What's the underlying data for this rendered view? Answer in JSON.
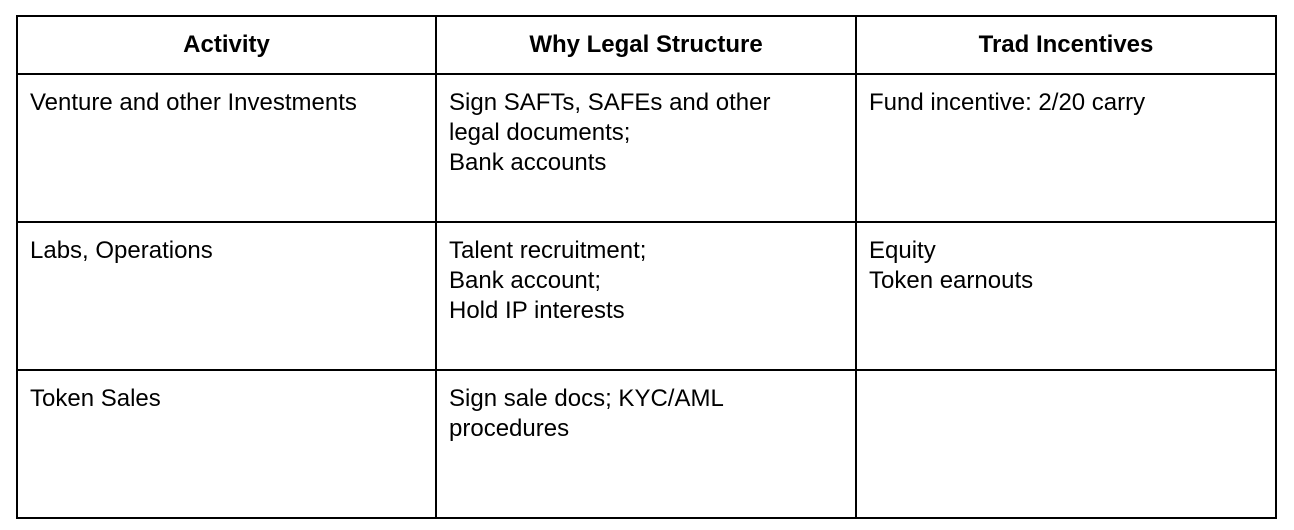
{
  "table": {
    "headers": [
      "Activity",
      "Why Legal Structure",
      "Trad Incentives"
    ],
    "rows": [
      {
        "activity": [
          "Venture and other Investments"
        ],
        "why": [
          "Sign SAFTs, SAFEs and other",
          "legal documents;",
          "Bank accounts"
        ],
        "incentives": [
          "Fund incentive: 2/20 carry"
        ]
      },
      {
        "activity": [
          "Labs, Operations"
        ],
        "why": [
          "Talent recruitment;",
          "Bank account;",
          "Hold IP interests"
        ],
        "incentives": [
          "Equity",
          "Token earnouts"
        ]
      },
      {
        "activity": [
          "Token Sales"
        ],
        "why": [
          "Sign sale docs; KYC/AML",
          "procedures"
        ],
        "incentives": []
      }
    ]
  }
}
